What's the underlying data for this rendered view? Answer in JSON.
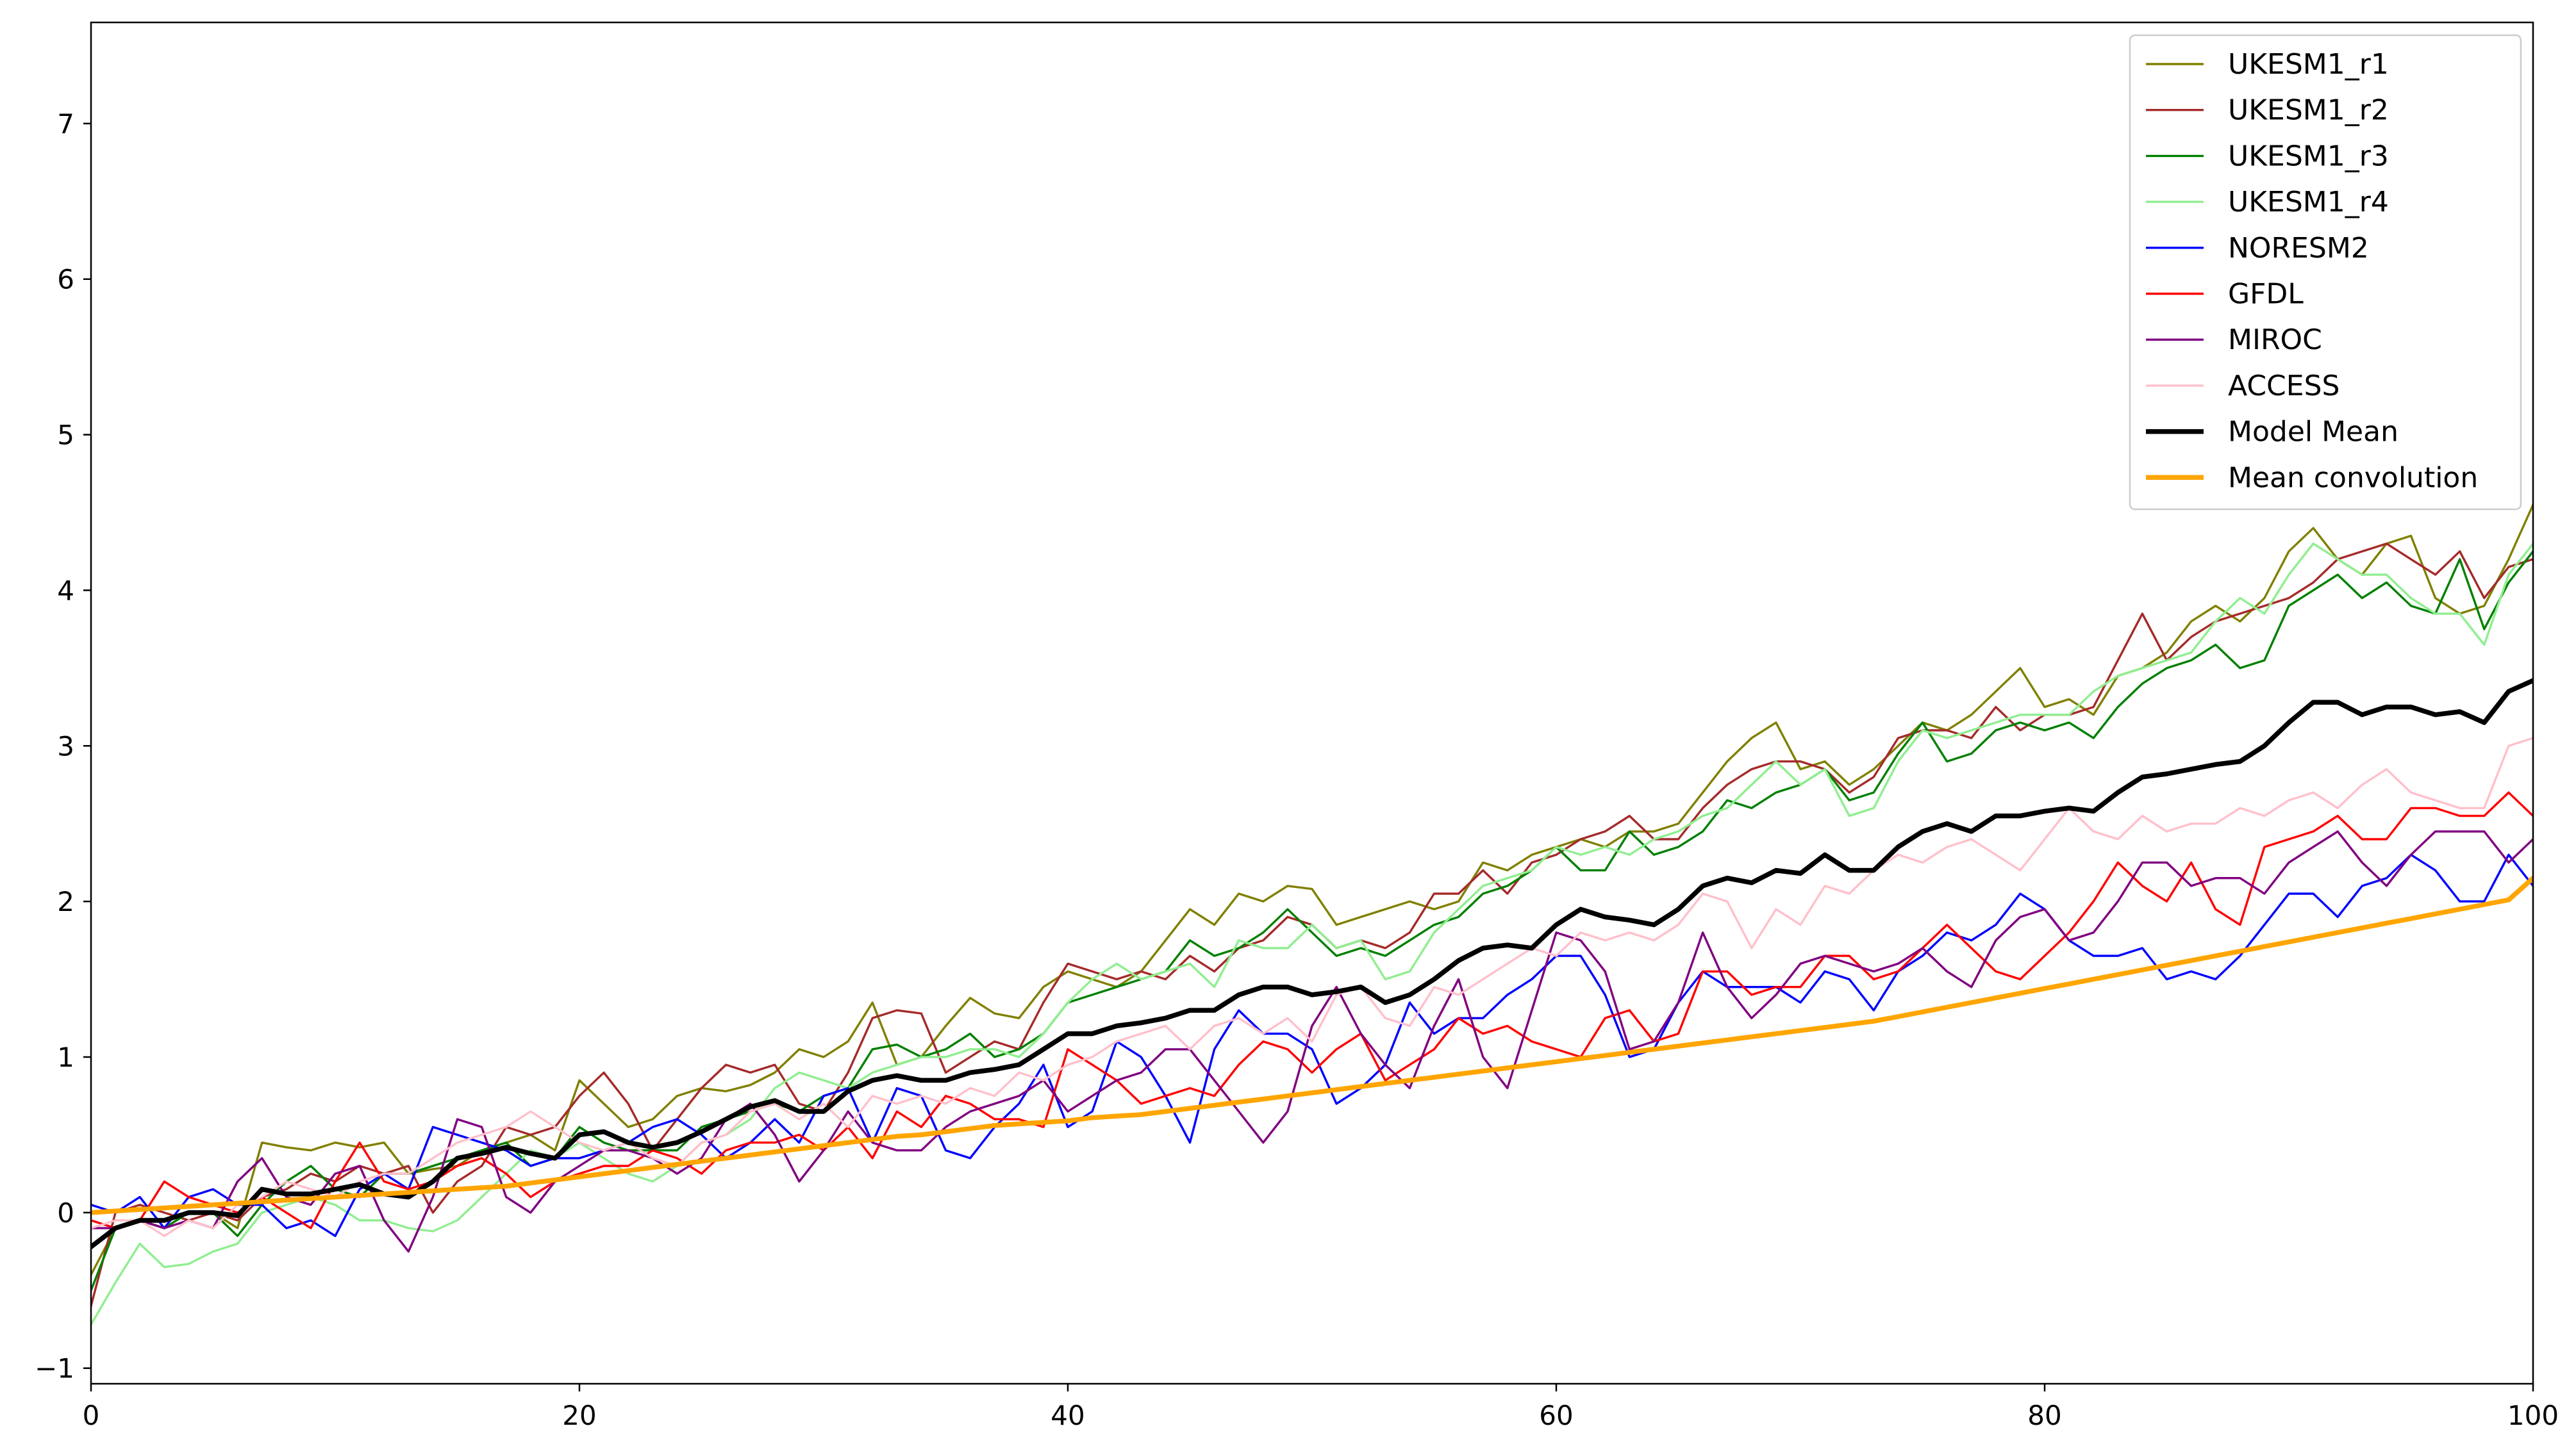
{
  "chart_data": {
    "type": "line",
    "title": "",
    "xlabel": "",
    "ylabel": "",
    "xlim": [
      0,
      100
    ],
    "ylim": [
      -1.1,
      7.65
    ],
    "xticks": [
      0,
      20,
      40,
      60,
      80,
      100
    ],
    "yticks": [
      -1,
      0,
      1,
      2,
      3,
      4,
      5,
      6,
      7
    ],
    "grid": false,
    "legend_position": "top-right",
    "x": [
      0,
      1,
      2,
      3,
      4,
      5,
      6,
      7,
      8,
      9,
      10,
      11,
      12,
      13,
      14,
      15,
      16,
      17,
      18,
      19,
      20,
      21,
      22,
      23,
      24,
      25,
      26,
      27,
      28,
      29,
      30,
      31,
      32,
      33,
      34,
      35,
      36,
      37,
      38,
      39,
      40,
      41,
      42,
      43,
      44,
      45,
      46,
      47,
      48,
      49,
      50,
      51,
      52,
      53,
      54,
      55,
      56,
      57,
      58,
      59,
      60,
      61,
      62,
      63,
      64,
      65,
      66,
      67,
      68,
      69,
      70,
      71,
      72,
      73,
      74,
      75,
      76,
      77,
      78,
      79,
      80,
      81,
      82,
      83,
      84,
      85,
      86,
      87,
      88,
      89,
      90,
      91,
      92,
      93,
      94,
      95,
      96,
      97,
      98,
      99,
      100
    ],
    "series": [
      {
        "name": "UKESM1_r1",
        "color": "#808000",
        "width": 1,
        "values": [
          -0.4,
          -0.1,
          -0.05,
          -0.1,
          0.0,
          0.0,
          -0.1,
          0.45,
          0.42,
          0.4,
          0.45,
          0.42,
          0.45,
          0.25,
          0.28,
          0.3,
          0.4,
          0.45,
          0.5,
          0.4,
          0.85,
          0.7,
          0.55,
          0.6,
          0.75,
          0.8,
          0.78,
          0.82,
          0.9,
          1.05,
          1.0,
          1.1,
          1.35,
          0.95,
          1.0,
          1.2,
          1.38,
          1.28,
          1.25,
          1.45,
          1.55,
          1.5,
          1.45,
          1.55,
          1.75,
          1.95,
          1.85,
          2.05,
          2.0,
          2.1,
          2.08,
          1.85,
          1.9,
          1.95,
          2.0,
          1.95,
          2.0,
          2.25,
          2.2,
          2.3,
          2.35,
          2.4,
          2.35,
          2.45,
          2.45,
          2.5,
          2.7,
          2.9,
          3.05,
          3.15,
          2.85,
          2.9,
          2.75,
          2.85,
          3.0,
          3.15,
          3.1,
          3.2,
          3.35,
          3.5,
          3.25,
          3.3,
          3.2,
          3.45,
          3.5,
          3.6,
          3.8,
          3.9,
          3.8,
          3.95,
          4.25,
          4.4,
          4.2,
          4.1,
          4.3,
          4.35,
          3.95,
          3.85,
          3.9,
          4.2,
          4.55
        ]
      },
      {
        "name": "UKESM1_r2",
        "color": "#a52a2a",
        "width": 1,
        "values": [
          -0.6,
          0.0,
          0.05,
          0.0,
          -0.05,
          0.0,
          -0.05,
          0.1,
          0.15,
          0.25,
          0.2,
          0.3,
          0.25,
          0.3,
          0.0,
          0.2,
          0.3,
          0.55,
          0.5,
          0.55,
          0.75,
          0.9,
          0.7,
          0.4,
          0.6,
          0.8,
          0.95,
          0.9,
          0.95,
          0.7,
          0.65,
          0.9,
          1.25,
          1.3,
          1.28,
          0.9,
          1.0,
          1.1,
          1.05,
          1.35,
          1.6,
          1.55,
          1.5,
          1.55,
          1.5,
          1.65,
          1.55,
          1.7,
          1.75,
          1.9,
          1.85,
          1.7,
          1.75,
          1.7,
          1.8,
          2.05,
          2.05,
          2.2,
          2.05,
          2.25,
          2.3,
          2.4,
          2.45,
          2.55,
          2.4,
          2.4,
          2.6,
          2.75,
          2.85,
          2.9,
          2.9,
          2.85,
          2.7,
          2.8,
          3.05,
          3.1,
          3.1,
          3.05,
          3.25,
          3.1,
          3.2,
          3.2,
          3.25,
          3.55,
          3.85,
          3.55,
          3.7,
          3.8,
          3.85,
          3.9,
          3.95,
          4.05,
          4.2,
          4.25,
          4.3,
          4.2,
          4.1,
          4.25,
          3.95,
          4.15,
          4.2
        ]
      },
      {
        "name": "UKESM1_r3",
        "color": "#008000",
        "width": 1,
        "values": [
          -0.5,
          -0.1,
          -0.05,
          -0.1,
          0.0,
          0.0,
          -0.15,
          0.05,
          0.2,
          0.3,
          0.15,
          0.1,
          0.25,
          0.25,
          0.3,
          0.35,
          0.4,
          0.45,
          0.3,
          0.35,
          0.55,
          0.45,
          0.4,
          0.4,
          0.4,
          0.55,
          0.6,
          0.65,
          0.7,
          0.65,
          0.75,
          0.8,
          1.05,
          1.08,
          1.0,
          1.05,
          1.15,
          1.0,
          1.05,
          1.15,
          1.35,
          1.4,
          1.45,
          1.5,
          1.55,
          1.75,
          1.65,
          1.7,
          1.8,
          1.95,
          1.8,
          1.65,
          1.7,
          1.65,
          1.75,
          1.85,
          1.9,
          2.05,
          2.1,
          2.2,
          2.35,
          2.2,
          2.2,
          2.45,
          2.3,
          2.35,
          2.45,
          2.65,
          2.6,
          2.7,
          2.75,
          2.85,
          2.65,
          2.7,
          2.95,
          3.15,
          2.9,
          2.95,
          3.1,
          3.15,
          3.1,
          3.15,
          3.05,
          3.25,
          3.4,
          3.5,
          3.55,
          3.65,
          3.5,
          3.55,
          3.9,
          4.0,
          4.1,
          3.95,
          4.05,
          3.9,
          3.85,
          4.2,
          3.75,
          4.05,
          4.25
        ]
      },
      {
        "name": "UKESM1_r4",
        "color": "#90ee90",
        "width": 1,
        "values": [
          -0.72,
          -0.45,
          -0.2,
          -0.35,
          -0.33,
          -0.25,
          -0.2,
          0.0,
          0.05,
          0.1,
          0.05,
          -0.05,
          -0.05,
          -0.1,
          -0.12,
          -0.05,
          0.1,
          0.25,
          0.4,
          0.35,
          0.45,
          0.35,
          0.25,
          0.2,
          0.3,
          0.45,
          0.5,
          0.6,
          0.8,
          0.9,
          0.85,
          0.8,
          0.9,
          0.95,
          1.0,
          1.0,
          1.05,
          1.05,
          1.0,
          1.15,
          1.35,
          1.5,
          1.6,
          1.5,
          1.55,
          1.6,
          1.45,
          1.75,
          1.7,
          1.7,
          1.85,
          1.7,
          1.75,
          1.5,
          1.55,
          1.8,
          1.95,
          2.1,
          2.15,
          2.2,
          2.35,
          2.3,
          2.35,
          2.3,
          2.4,
          2.45,
          2.55,
          2.6,
          2.75,
          2.9,
          2.75,
          2.85,
          2.55,
          2.6,
          2.9,
          3.1,
          3.05,
          3.1,
          3.15,
          3.2,
          3.2,
          3.2,
          3.35,
          3.45,
          3.5,
          3.55,
          3.6,
          3.8,
          3.95,
          3.85,
          4.1,
          4.3,
          4.2,
          4.1,
          4.1,
          3.95,
          3.85,
          3.85,
          3.65,
          4.1,
          4.3
        ]
      },
      {
        "name": "NORESM2",
        "color": "#0000ff",
        "width": 1,
        "values": [
          0.05,
          0.0,
          0.1,
          -0.1,
          0.1,
          0.15,
          0.05,
          0.05,
          -0.1,
          -0.05,
          -0.15,
          0.15,
          0.25,
          0.15,
          0.55,
          0.5,
          0.45,
          0.4,
          0.3,
          0.35,
          0.35,
          0.4,
          0.45,
          0.55,
          0.6,
          0.5,
          0.35,
          0.45,
          0.6,
          0.45,
          0.75,
          0.8,
          0.45,
          0.8,
          0.75,
          0.4,
          0.35,
          0.55,
          0.7,
          0.95,
          0.55,
          0.65,
          1.1,
          1.0,
          0.75,
          0.45,
          1.05,
          1.3,
          1.15,
          1.15,
          1.05,
          0.7,
          0.8,
          0.95,
          1.35,
          1.15,
          1.25,
          1.25,
          1.4,
          1.5,
          1.65,
          1.65,
          1.4,
          1.0,
          1.05,
          1.35,
          1.55,
          1.45,
          1.45,
          1.45,
          1.35,
          1.55,
          1.5,
          1.3,
          1.55,
          1.65,
          1.8,
          1.75,
          1.85,
          2.05,
          1.95,
          1.75,
          1.65,
          1.65,
          1.7,
          1.5,
          1.55,
          1.5,
          1.65,
          1.85,
          2.05,
          2.05,
          1.9,
          2.1,
          2.15,
          2.3,
          2.2,
          2.0,
          2.0,
          2.3,
          2.1
        ]
      },
      {
        "name": "GFDL",
        "color": "#ff0000",
        "width": 1,
        "values": [
          -0.05,
          -0.1,
          -0.05,
          0.2,
          0.1,
          0.05,
          0.0,
          0.1,
          0.0,
          -0.1,
          0.2,
          0.45,
          0.2,
          0.15,
          0.2,
          0.3,
          0.35,
          0.25,
          0.1,
          0.2,
          0.25,
          0.3,
          0.3,
          0.4,
          0.35,
          0.25,
          0.4,
          0.45,
          0.45,
          0.5,
          0.4,
          0.55,
          0.35,
          0.65,
          0.55,
          0.75,
          0.7,
          0.6,
          0.6,
          0.55,
          1.05,
          0.95,
          0.85,
          0.7,
          0.75,
          0.8,
          0.75,
          0.95,
          1.1,
          1.05,
          0.9,
          1.05,
          1.15,
          0.85,
          0.95,
          1.05,
          1.25,
          1.15,
          1.2,
          1.1,
          1.05,
          1.0,
          1.25,
          1.3,
          1.1,
          1.15,
          1.55,
          1.55,
          1.4,
          1.45,
          1.45,
          1.65,
          1.65,
          1.5,
          1.55,
          1.7,
          1.85,
          1.7,
          1.55,
          1.5,
          1.65,
          1.8,
          2.0,
          2.25,
          2.1,
          2.0,
          2.25,
          1.95,
          1.85,
          2.35,
          2.4,
          2.45,
          2.55,
          2.4,
          2.4,
          2.6,
          2.6,
          2.55,
          2.55,
          2.7,
          2.55
        ]
      },
      {
        "name": "MIROC",
        "color": "#800080",
        "width": 1,
        "values": [
          -0.1,
          -0.1,
          -0.05,
          -0.1,
          -0.05,
          -0.1,
          0.2,
          0.35,
          0.1,
          0.05,
          0.25,
          0.3,
          -0.05,
          -0.25,
          0.1,
          0.6,
          0.55,
          0.1,
          0.0,
          0.2,
          0.3,
          0.4,
          0.4,
          0.35,
          0.25,
          0.35,
          0.6,
          0.7,
          0.5,
          0.2,
          0.4,
          0.65,
          0.45,
          0.4,
          0.4,
          0.55,
          0.65,
          0.7,
          0.75,
          0.85,
          0.65,
          0.75,
          0.85,
          0.9,
          1.05,
          1.05,
          0.85,
          0.65,
          0.45,
          0.65,
          1.2,
          1.45,
          1.15,
          0.95,
          0.8,
          1.2,
          1.5,
          1.0,
          0.8,
          1.3,
          1.8,
          1.75,
          1.55,
          1.05,
          1.1,
          1.35,
          1.8,
          1.45,
          1.25,
          1.4,
          1.6,
          1.65,
          1.6,
          1.55,
          1.6,
          1.7,
          1.55,
          1.45,
          1.75,
          1.9,
          1.95,
          1.75,
          1.8,
          2.0,
          2.25,
          2.25,
          2.1,
          2.15,
          2.15,
          2.05,
          2.25,
          2.35,
          2.45,
          2.25,
          2.1,
          2.3,
          2.45,
          2.45,
          2.45,
          2.25,
          2.4
        ]
      },
      {
        "name": "ACCESS",
        "color": "#ffc0cb",
        "width": 1,
        "values": [
          -0.1,
          -0.05,
          -0.05,
          -0.15,
          -0.05,
          -0.1,
          0.05,
          0.1,
          0.2,
          0.15,
          0.1,
          0.2,
          0.25,
          0.25,
          0.35,
          0.45,
          0.5,
          0.55,
          0.65,
          0.55,
          0.45,
          0.4,
          0.45,
          0.35,
          0.3,
          0.45,
          0.5,
          0.65,
          0.7,
          0.6,
          0.7,
          0.55,
          0.75,
          0.7,
          0.75,
          0.7,
          0.8,
          0.75,
          0.9,
          0.85,
          0.95,
          1.0,
          1.1,
          1.15,
          1.2,
          1.05,
          1.2,
          1.25,
          1.15,
          1.25,
          1.1,
          1.4,
          1.45,
          1.25,
          1.2,
          1.45,
          1.4,
          1.5,
          1.6,
          1.7,
          1.65,
          1.8,
          1.75,
          1.8,
          1.75,
          1.85,
          2.05,
          2.0,
          1.7,
          1.95,
          1.85,
          2.1,
          2.05,
          2.2,
          2.3,
          2.25,
          2.35,
          2.4,
          2.3,
          2.2,
          2.4,
          2.6,
          2.45,
          2.4,
          2.55,
          2.45,
          2.5,
          2.5,
          2.6,
          2.55,
          2.65,
          2.7,
          2.6,
          2.75,
          2.85,
          2.7,
          2.65,
          2.6,
          2.6,
          3.0,
          3.05
        ]
      },
      {
        "name": "Model Mean",
        "color": "#000000",
        "width": 2.2,
        "values": [
          -0.22,
          -0.1,
          -0.05,
          -0.05,
          0.0,
          0.0,
          -0.02,
          0.15,
          0.12,
          0.12,
          0.15,
          0.18,
          0.12,
          0.1,
          0.2,
          0.35,
          0.38,
          0.42,
          0.38,
          0.35,
          0.5,
          0.52,
          0.45,
          0.42,
          0.45,
          0.52,
          0.6,
          0.68,
          0.72,
          0.65,
          0.65,
          0.78,
          0.85,
          0.88,
          0.85,
          0.85,
          0.9,
          0.92,
          0.95,
          1.05,
          1.15,
          1.15,
          1.2,
          1.22,
          1.25,
          1.3,
          1.3,
          1.4,
          1.45,
          1.45,
          1.4,
          1.42,
          1.45,
          1.35,
          1.4,
          1.5,
          1.62,
          1.7,
          1.72,
          1.7,
          1.85,
          1.95,
          1.9,
          1.88,
          1.85,
          1.95,
          2.1,
          2.15,
          2.12,
          2.2,
          2.18,
          2.3,
          2.2,
          2.2,
          2.35,
          2.45,
          2.5,
          2.45,
          2.55,
          2.55,
          2.58,
          2.6,
          2.58,
          2.7,
          2.8,
          2.82,
          2.85,
          2.88,
          2.9,
          3.0,
          3.15,
          3.28,
          3.28,
          3.2,
          3.25,
          3.25,
          3.2,
          3.22,
          3.15,
          3.35,
          3.42
        ]
      },
      {
        "name": "Mean convolution",
        "color": "#ffa500",
        "width": 2.2,
        "values": [
          0.0,
          0.01,
          0.02,
          0.03,
          0.04,
          0.05,
          0.06,
          0.07,
          0.08,
          0.09,
          0.1,
          0.11,
          0.12,
          0.13,
          0.14,
          0.15,
          0.16,
          0.17,
          0.19,
          0.21,
          0.23,
          0.25,
          0.27,
          0.29,
          0.31,
          0.33,
          0.35,
          0.37,
          0.39,
          0.41,
          0.43,
          0.45,
          0.47,
          0.49,
          0.5,
          0.52,
          0.54,
          0.56,
          0.57,
          0.58,
          0.59,
          0.61,
          0.62,
          0.63,
          0.65,
          0.67,
          0.69,
          0.71,
          0.73,
          0.75,
          0.77,
          0.79,
          0.81,
          0.83,
          0.85,
          0.87,
          0.89,
          0.91,
          0.93,
          0.95,
          0.97,
          0.99,
          1.01,
          1.03,
          1.05,
          1.07,
          1.09,
          1.11,
          1.13,
          1.15,
          1.17,
          1.19,
          1.21,
          1.23,
          1.26,
          1.29,
          1.32,
          1.35,
          1.38,
          1.41,
          1.44,
          1.47,
          1.5,
          1.53,
          1.56,
          1.59,
          1.62,
          1.65,
          1.68,
          1.71,
          1.74,
          1.77,
          1.8,
          1.83,
          1.86,
          1.89,
          1.92,
          1.95,
          1.98,
          2.01,
          2.15
        ]
      }
    ]
  }
}
